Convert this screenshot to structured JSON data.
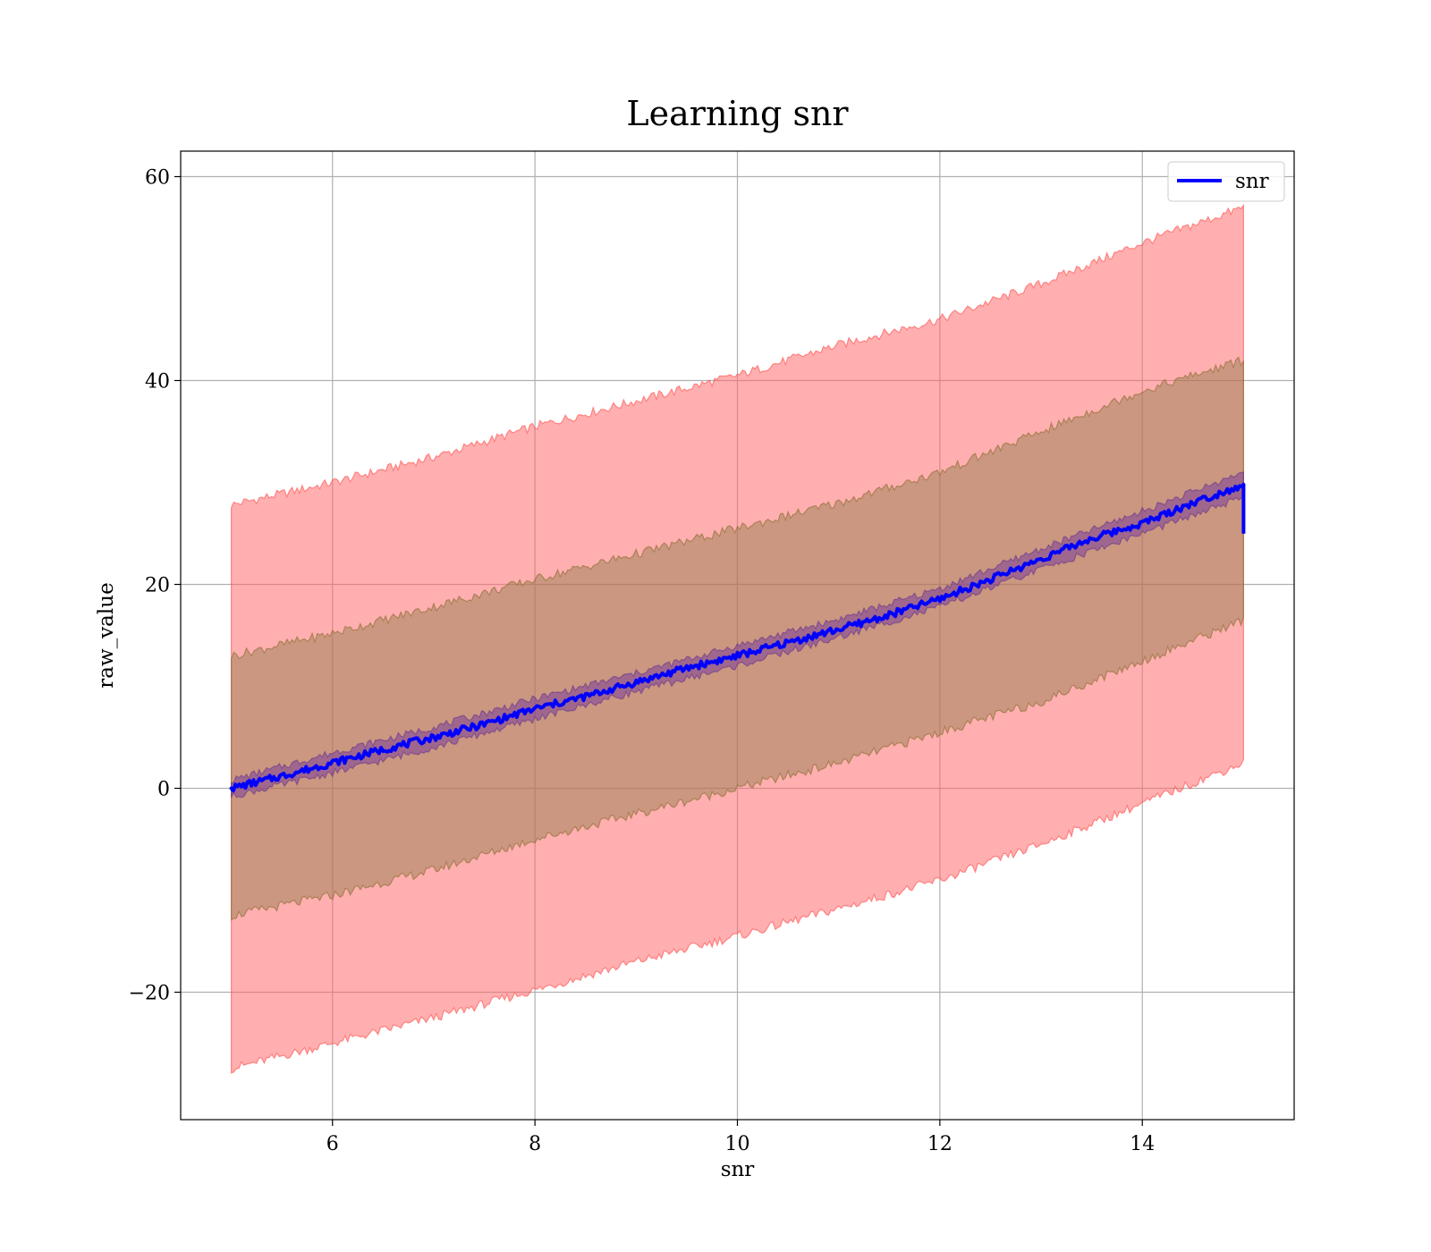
{
  "chart_data": {
    "type": "line",
    "title": "Learning snr",
    "xlabel": "snr",
    "ylabel": "raw_value",
    "xlim": [
      4.5,
      15.5
    ],
    "ylim": [
      -32.5,
      62.5
    ],
    "x_ticks": [
      6,
      8,
      10,
      12,
      14
    ],
    "y_ticks": [
      -20,
      0,
      20,
      40,
      60
    ],
    "x_tick_labels": [
      "6",
      "8",
      "10",
      "12",
      "14"
    ],
    "y_tick_labels": [
      "−20",
      "0",
      "20",
      "40",
      "60"
    ],
    "grid": true,
    "legend_position": "upper right",
    "series": [
      {
        "name": "snr",
        "color": "#0000ff",
        "x": [
          5,
          5.5,
          6,
          6.5,
          7,
          7.5,
          8,
          8.5,
          9,
          9.5,
          10,
          10.5,
          11,
          11.5,
          12,
          12.5,
          13,
          13.5,
          14,
          14.5,
          15
        ],
        "values": [
          0,
          1.2,
          2.5,
          3.8,
          5.0,
          6.3,
          7.8,
          9.0,
          10.4,
          11.8,
          13.0,
          14.3,
          15.6,
          17.0,
          18.6,
          20.5,
          22.5,
          24.5,
          26.0,
          28.0,
          29.8
        ]
      }
    ],
    "bands": [
      {
        "role": "outer",
        "color": "#ff0000",
        "x": [
          5,
          6,
          7,
          8,
          9,
          10,
          11,
          12,
          13,
          14,
          15
        ],
        "lower": [
          -27.5,
          -25.0,
          -22.5,
          -19.8,
          -17.0,
          -14.5,
          -11.8,
          -9.0,
          -5.5,
          -1.5,
          2.5
        ],
        "upper": [
          27.8,
          30.0,
          32.5,
          35.5,
          38.0,
          40.5,
          43.5,
          46.0,
          49.5,
          53.5,
          57.0
        ]
      },
      {
        "role": "middle",
        "color": "#8b6a3e",
        "x": [
          5,
          6,
          7,
          8,
          9,
          10,
          11,
          12,
          13,
          14,
          15
        ],
        "lower": [
          -12.5,
          -10.5,
          -8.0,
          -5.0,
          -2.5,
          0.0,
          2.5,
          5.5,
          8.5,
          12.5,
          16.5
        ],
        "upper": [
          13.0,
          15.2,
          17.8,
          20.5,
          23.0,
          25.5,
          28.0,
          31.0,
          35.0,
          39.0,
          42.0
        ]
      },
      {
        "role": "inner",
        "color": "#6a2aa0",
        "x": [
          5,
          6,
          7,
          8,
          9,
          10,
          11,
          12,
          13,
          14,
          15
        ],
        "lower": [
          -0.8,
          1.5,
          4.0,
          6.8,
          9.5,
          12.0,
          14.8,
          17.8,
          21.5,
          25.0,
          28.5
        ],
        "upper": [
          0.8,
          3.5,
          6.0,
          8.8,
          11.3,
          14.0,
          16.6,
          19.6,
          23.5,
          27.2,
          31.0
        ]
      }
    ]
  }
}
